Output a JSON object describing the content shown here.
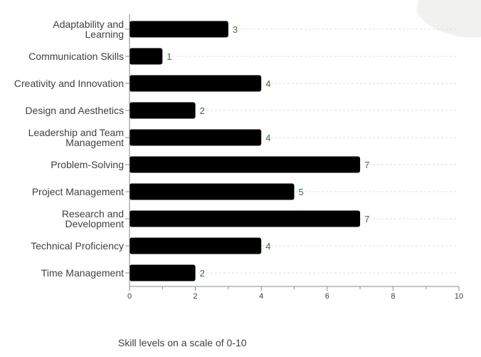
{
  "chart_data": {
    "type": "bar",
    "orientation": "horizontal",
    "categories": [
      "Adaptability and Learning",
      "Communication Skills",
      "Creativity and Innovation",
      "Design and Aesthetics",
      "Leadership and Team Management",
      "Problem-Solving",
      "Project Management",
      "Research and Development",
      "Technical Proficiency",
      "Time Management"
    ],
    "category_lines": [
      [
        "Adaptability and",
        "Learning"
      ],
      [
        "Communication Skills"
      ],
      [
        "Creativity and Innovation"
      ],
      [
        "Design and Aesthetics"
      ],
      [
        "Leadership and Team",
        "Management"
      ],
      [
        "Problem-Solving"
      ],
      [
        "Project Management"
      ],
      [
        "Research and",
        "Development"
      ],
      [
        "Technical Proficiency"
      ],
      [
        "Time Management"
      ]
    ],
    "values": [
      3,
      1,
      4,
      2,
      4,
      7,
      5,
      7,
      4,
      2
    ],
    "value_labels": [
      "3",
      "1",
      "4",
      "2",
      "4",
      "7",
      "5",
      "7",
      "4",
      "2"
    ],
    "xlim": [
      0,
      10
    ],
    "xticks": [
      0,
      2,
      4,
      6,
      8,
      10
    ],
    "xlabel": "Skill levels on a scale of 0-10",
    "grid": "vertical dashed at ticks",
    "bar_color": "#000000",
    "value_label_color": "#3d6e3d"
  }
}
